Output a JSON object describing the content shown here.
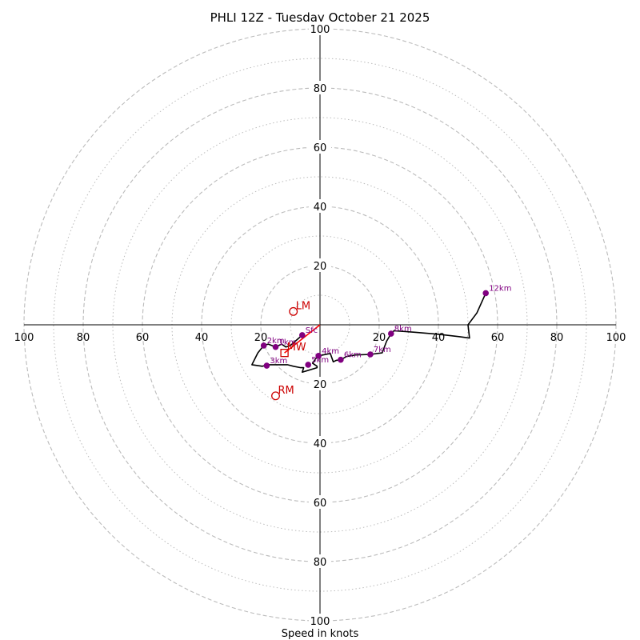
{
  "chart_data": {
    "type": "hodograph",
    "title": "PHLI 12Z - Tuesday October 21 2025",
    "xlabel": "Speed in knots",
    "ylabel": "",
    "unit": "knots",
    "max_radius": 100,
    "ring_major": [
      20,
      40,
      60,
      80,
      100
    ],
    "ring_minor": [
      10,
      30,
      50,
      70,
      90
    ],
    "x_ticks": [
      {
        "value": -100,
        "label": "100"
      },
      {
        "value": -80,
        "label": "80"
      },
      {
        "value": -60,
        "label": "60"
      },
      {
        "value": -40,
        "label": "40"
      },
      {
        "value": -20,
        "label": "20"
      },
      {
        "value": 20,
        "label": "20"
      },
      {
        "value": 40,
        "label": "40"
      },
      {
        "value": 60,
        "label": "60"
      },
      {
        "value": 80,
        "label": "80"
      },
      {
        "value": 100,
        "label": "100"
      }
    ],
    "y_ticks": [
      {
        "value": 100,
        "label": "100"
      },
      {
        "value": 80,
        "label": "80"
      },
      {
        "value": 60,
        "label": "60"
      },
      {
        "value": 40,
        "label": "40"
      },
      {
        "value": 20,
        "label": "20"
      },
      {
        "value": -20,
        "label": "20"
      },
      {
        "value": -40,
        "label": "40"
      },
      {
        "value": -60,
        "label": "60"
      },
      {
        "value": -80,
        "label": "80"
      },
      {
        "value": -100,
        "label": "100"
      }
    ],
    "trace": [
      [
        -6,
        -3.5
      ],
      [
        -10,
        -7
      ],
      [
        -11.5,
        -7.5
      ],
      [
        -13,
        -6.5
      ],
      [
        -15,
        -7.5
      ],
      [
        -17.5,
        -6.5
      ],
      [
        -19,
        -7
      ],
      [
        -21,
        -9.5
      ],
      [
        -23,
        -13.5
      ],
      [
        -19.5,
        -14
      ],
      [
        -17.5,
        -13.5
      ],
      [
        -15,
        -13.5
      ],
      [
        -11,
        -13.5
      ],
      [
        -9,
        -14
      ],
      [
        -6.5,
        -14.5
      ],
      [
        -5.5,
        -14.5
      ],
      [
        -6,
        -16
      ],
      [
        -1,
        -14.5
      ],
      [
        -1,
        -14
      ],
      [
        -2.5,
        -13
      ],
      [
        -1.5,
        -11.5
      ],
      [
        -0.5,
        -10.5
      ],
      [
        1,
        -10.2
      ],
      [
        3.5,
        -9.7
      ],
      [
        4.5,
        -12.5
      ],
      [
        5.5,
        -12
      ],
      [
        7,
        -11.8
      ],
      [
        9,
        -10.7
      ],
      [
        12,
        -10.2
      ],
      [
        17,
        -10
      ],
      [
        21,
        -9.5
      ],
      [
        22.5,
        -5.5
      ],
      [
        24,
        -3
      ],
      [
        25,
        -2
      ],
      [
        32,
        -2.5
      ],
      [
        40,
        -3.2
      ],
      [
        47,
        -4
      ],
      [
        50.5,
        -4.5
      ],
      [
        50,
        0
      ],
      [
        53,
        4
      ],
      [
        56,
        10.7
      ]
    ],
    "height_markers": [
      {
        "label": "Sfc",
        "u": -6,
        "v": -3.5
      },
      {
        "label": "1km",
        "u": -15,
        "v": -7.5
      },
      {
        "label": "2km",
        "u": -19,
        "v": -7
      },
      {
        "label": "3km",
        "u": -18,
        "v": -13.8
      },
      {
        "label": "4km",
        "u": -0.5,
        "v": -10.5
      },
      {
        "label": "5km",
        "u": -4,
        "v": -13.5
      },
      {
        "label": "6km",
        "u": 7,
        "v": -11.8
      },
      {
        "label": "7km",
        "u": 17,
        "v": -10
      },
      {
        "label": "8km",
        "u": 24,
        "v": -3
      },
      {
        "label": "12km",
        "u": 56,
        "v": 10.7
      }
    ],
    "storm_motion_points": [
      {
        "label": "LM",
        "u": -9,
        "v": 4.5
      },
      {
        "label": "MW",
        "u": -12,
        "v": -9.5
      },
      {
        "label": "RM",
        "u": -15,
        "v": -24
      }
    ],
    "shear_vector": {
      "from_u": 0,
      "from_v": 0,
      "to_u": -12,
      "to_v": -9.5
    },
    "colors": {
      "trace": "#000000",
      "marker": "#800080",
      "marker_label": "#800080",
      "storm_motion": "#cc0000",
      "shear_vector": "#ff0000",
      "ring": "#bbbbbb",
      "axis": "#000000"
    }
  }
}
